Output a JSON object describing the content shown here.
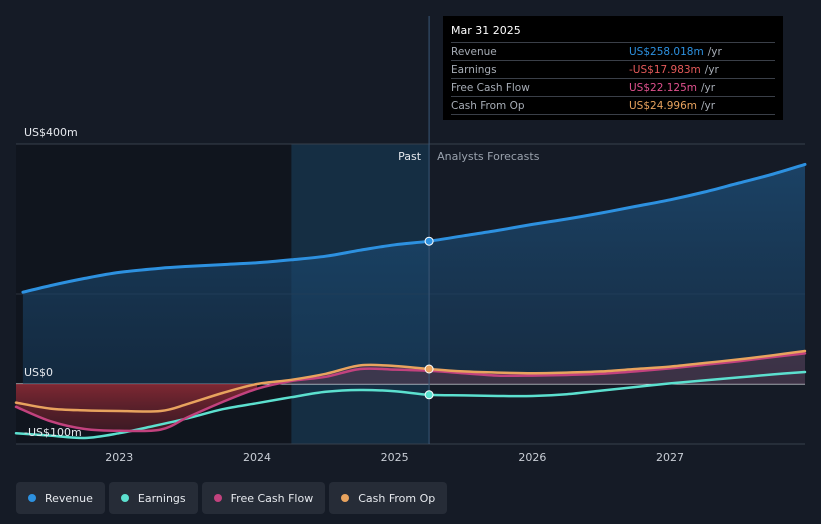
{
  "chart_data": {
    "type": "line",
    "y_labels": [
      {
        "value": 400,
        "label": "US$400m"
      },
      {
        "value": 0,
        "label": "US$0"
      },
      {
        "value": -100,
        "label": "-US$100m"
      }
    ],
    "ylim": [
      -100,
      400
    ],
    "xlim": [
      2022.25,
      2027.98
    ],
    "x_ticks": [
      {
        "value": 2023,
        "label": "2023"
      },
      {
        "value": 2024,
        "label": "2024"
      },
      {
        "value": 2025,
        "label": "2025"
      },
      {
        "value": 2026,
        "label": "2026"
      },
      {
        "value": 2027,
        "label": "2027"
      }
    ],
    "past_label": "Past",
    "forecast_label": "Analysts Forecasts",
    "divider_x": 2025.25,
    "shade_start_x": 2024.25,
    "series": [
      {
        "name": "Revenue",
        "color": "#2d91e0",
        "points": [
          [
            2022.3,
            153
          ],
          [
            2022.5,
            164
          ],
          [
            2022.75,
            176
          ],
          [
            2023,
            186
          ],
          [
            2023.3,
            193
          ],
          [
            2023.5,
            196
          ],
          [
            2023.75,
            199
          ],
          [
            2024,
            202
          ],
          [
            2024.25,
            207
          ],
          [
            2024.5,
            213
          ],
          [
            2024.75,
            223
          ],
          [
            2025,
            232
          ],
          [
            2025.25,
            258
          ],
          [
            2025.5,
            247
          ],
          [
            2025.75,
            256
          ],
          [
            2026,
            266
          ],
          [
            2026.25,
            275
          ],
          [
            2026.5,
            285
          ],
          [
            2026.75,
            296
          ],
          [
            2027,
            307
          ],
          [
            2027.25,
            320
          ],
          [
            2027.5,
            335
          ],
          [
            2027.75,
            350
          ],
          [
            2027.98,
            366
          ]
        ]
      },
      {
        "name": "Earnings",
        "color": "#5ce0cf",
        "points": [
          [
            2022.25,
            -82
          ],
          [
            2022.5,
            -86
          ],
          [
            2022.75,
            -90
          ],
          [
            2023,
            -82
          ],
          [
            2023.25,
            -70
          ],
          [
            2023.5,
            -57
          ],
          [
            2023.75,
            -42
          ],
          [
            2024,
            -32
          ],
          [
            2024.25,
            -22
          ],
          [
            2024.5,
            -13
          ],
          [
            2024.75,
            -10
          ],
          [
            2025,
            -12
          ],
          [
            2025.25,
            -18
          ],
          [
            2025.5,
            -19
          ],
          [
            2025.75,
            -20
          ],
          [
            2026,
            -20
          ],
          [
            2026.25,
            -17
          ],
          [
            2026.5,
            -11
          ],
          [
            2026.75,
            -5
          ],
          [
            2027,
            1
          ],
          [
            2027.25,
            6
          ],
          [
            2027.5,
            11
          ],
          [
            2027.75,
            16
          ],
          [
            2027.98,
            20
          ]
        ]
      },
      {
        "name": "Free Cash Flow",
        "color": "#c2427e",
        "points": [
          [
            2022.25,
            -38
          ],
          [
            2022.5,
            -62
          ],
          [
            2022.75,
            -75
          ],
          [
            2023,
            -78
          ],
          [
            2023.3,
            -76
          ],
          [
            2023.5,
            -55
          ],
          [
            2023.75,
            -30
          ],
          [
            2024,
            -8
          ],
          [
            2024.25,
            5
          ],
          [
            2024.5,
            12
          ],
          [
            2024.75,
            25
          ],
          [
            2025,
            24
          ],
          [
            2025.25,
            22
          ],
          [
            2025.5,
            18
          ],
          [
            2025.75,
            14
          ],
          [
            2026,
            14
          ],
          [
            2026.25,
            15
          ],
          [
            2026.5,
            17
          ],
          [
            2026.75,
            21
          ],
          [
            2027,
            26
          ],
          [
            2027.25,
            32
          ],
          [
            2027.5,
            38
          ],
          [
            2027.75,
            45
          ],
          [
            2027.98,
            51
          ]
        ]
      },
      {
        "name": "Cash From Op",
        "color": "#e8a35e",
        "points": [
          [
            2022.25,
            -31
          ],
          [
            2022.5,
            -41
          ],
          [
            2022.75,
            -44
          ],
          [
            2023,
            -45
          ],
          [
            2023.3,
            -45
          ],
          [
            2023.5,
            -33
          ],
          [
            2023.75,
            -15
          ],
          [
            2024,
            0
          ],
          [
            2024.25,
            7
          ],
          [
            2024.5,
            17
          ],
          [
            2024.75,
            31
          ],
          [
            2025,
            30
          ],
          [
            2025.25,
            25
          ],
          [
            2025.5,
            21
          ],
          [
            2025.75,
            19
          ],
          [
            2026,
            18
          ],
          [
            2026.25,
            19
          ],
          [
            2026.5,
            21
          ],
          [
            2026.75,
            25
          ],
          [
            2027,
            29
          ],
          [
            2027.25,
            35
          ],
          [
            2027.5,
            41
          ],
          [
            2027.75,
            48
          ],
          [
            2027.98,
            55
          ]
        ]
      }
    ]
  },
  "tooltip": {
    "date": "Mar 31 2025",
    "rows": [
      {
        "label": "Revenue",
        "value": "US$258.018m",
        "unit": "/yr",
        "color": "#2d91e0"
      },
      {
        "label": "Earnings",
        "value": "-US$17.983m",
        "unit": "/yr",
        "color": "#e65a5a"
      },
      {
        "label": "Free Cash Flow",
        "value": "US$22.125m",
        "unit": "/yr",
        "color": "#e0518e"
      },
      {
        "label": "Cash From Op",
        "value": "US$24.996m",
        "unit": "/yr",
        "color": "#e8a35e"
      }
    ]
  },
  "legend": [
    {
      "label": "Revenue",
      "color": "#2d91e0"
    },
    {
      "label": "Earnings",
      "color": "#5ce0cf"
    },
    {
      "label": "Free Cash Flow",
      "color": "#c2427e"
    },
    {
      "label": "Cash From Op",
      "color": "#e8a35e"
    }
  ]
}
